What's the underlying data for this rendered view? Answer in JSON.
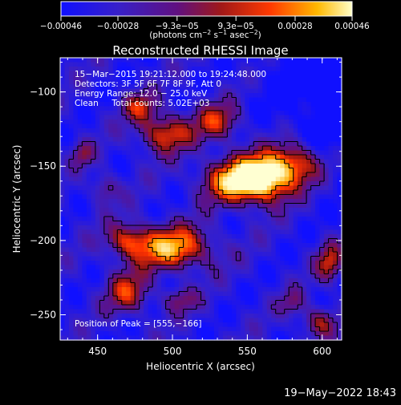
{
  "chart_data": {
    "type": "heatmap",
    "title": "Reconstructed RHESSI Image",
    "xlabel": "Heliocentric X (arcsec)",
    "ylabel": "Heliocentric Y (arcsec)",
    "xlim": [
      425,
      613
    ],
    "ylim": [
      -267,
      -77
    ],
    "x_ticks": [
      450,
      500,
      550,
      600
    ],
    "y_ticks": [
      -100,
      -150,
      -200,
      -250
    ],
    "x_tick_labels": [
      "450",
      "500",
      "550",
      "600"
    ],
    "y_tick_labels": [
      "−100",
      "−150",
      "−200",
      "−250"
    ],
    "colorbar": {
      "range": [
        -0.00046,
        0.00046
      ],
      "tick_values": [
        -0.00046,
        -0.00028,
        -9.3e-05,
        9.3e-05,
        0.00028,
        0.00046
      ],
      "tick_labels": [
        "−0.00046",
        "−0.00028",
        "−9.3e−05",
        "9.3e−05",
        "0.00028",
        "0.00046"
      ],
      "units_label": "(photons cm",
      "units_exp1": "−2",
      "units_mid": " s",
      "units_exp2": "−1",
      "units_mid2": " asec",
      "units_exp3": "−2",
      "units_end": ")"
    },
    "annotations": [
      "15−Mar−2015 19:21:12.000 to 19:24:48.000",
      "Detectors: 3F 5F 6F 7F 8F 9F, Att 0",
      "Energy Range: 12.0 − 25.0 keV",
      "Clean     Total counts: 5.02E+03"
    ],
    "peak_label": "Position of Peak = [555,−166]",
    "peak": [
      555,
      -166
    ],
    "sources": [
      {
        "x": 560,
        "y": -158,
        "sx": 14,
        "sy": 11,
        "amp": 1.0
      },
      {
        "x": 538,
        "y": -160,
        "sx": 14,
        "sy": 10,
        "amp": 0.55
      },
      {
        "x": 583,
        "y": -148,
        "sx": 12,
        "sy": 10,
        "amp": 0.55
      },
      {
        "x": 530,
        "y": -120,
        "sx": 11,
        "sy": 9,
        "amp": 0.45
      },
      {
        "x": 495,
        "y": -128,
        "sx": 12,
        "sy": 9,
        "amp": 0.55
      },
      {
        "x": 478,
        "y": -110,
        "sx": 8,
        "sy": 7,
        "amp": 0.4
      },
      {
        "x": 500,
        "y": -205,
        "sx": 18,
        "sy": 10,
        "amp": 0.7
      },
      {
        "x": 470,
        "y": -200,
        "sx": 10,
        "sy": 8,
        "amp": 0.45
      },
      {
        "x": 470,
        "y": -235,
        "sx": 10,
        "sy": 10,
        "amp": 0.45
      },
      {
        "x": 505,
        "y": -240,
        "sx": 8,
        "sy": 6,
        "amp": 0.3
      },
      {
        "x": 605,
        "y": -215,
        "sx": 6,
        "sy": 9,
        "amp": 0.45
      },
      {
        "x": 598,
        "y": -255,
        "sx": 8,
        "sy": 7,
        "amp": 0.4
      },
      {
        "x": 580,
        "y": -242,
        "sx": 6,
        "sy": 6,
        "amp": 0.25
      },
      {
        "x": 440,
        "y": -142,
        "sx": 5,
        "sy": 6,
        "amp": 0.3
      },
      {
        "x": 455,
        "y": -165,
        "sx": 6,
        "sy": 7,
        "amp": 0.3
      }
    ]
  },
  "footer": {
    "date": "19−May−2022 18:43"
  }
}
